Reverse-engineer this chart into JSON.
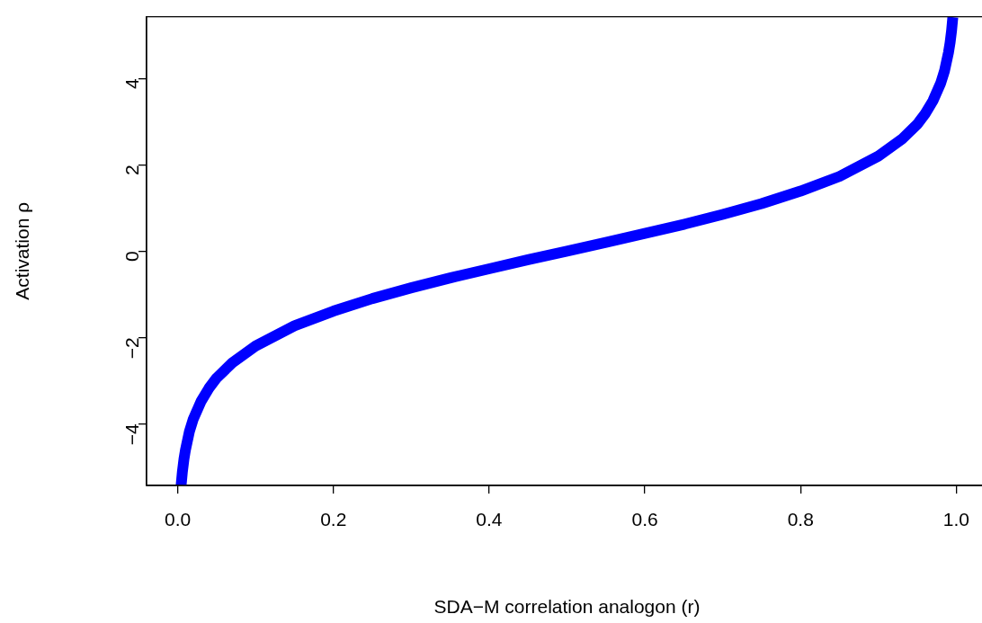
{
  "chart_data": {
    "type": "line",
    "xlabel": "SDA−M correlation analogon (r)",
    "ylabel": "Activation ρ",
    "x": [
      0.0044,
      0.006,
      0.008,
      0.01,
      0.015,
      0.02,
      0.03,
      0.04,
      0.05,
      0.07,
      0.1,
      0.15,
      0.2,
      0.25,
      0.3,
      0.35,
      0.4,
      0.45,
      0.5,
      0.55,
      0.6,
      0.65,
      0.7,
      0.75,
      0.8,
      0.85,
      0.9,
      0.93,
      0.95,
      0.96,
      0.97,
      0.98,
      0.985,
      0.99,
      0.992,
      0.994,
      0.9956
    ],
    "series": [
      {
        "color": "#0000ff",
        "values": [
          -5.42,
          -5.11,
          -4.82,
          -4.6,
          -4.18,
          -3.89,
          -3.48,
          -3.18,
          -2.94,
          -2.59,
          -2.2,
          -1.73,
          -1.39,
          -1.1,
          -0.85,
          -0.62,
          -0.41,
          -0.2,
          0,
          0.2,
          0.41,
          0.62,
          0.85,
          1.1,
          1.39,
          1.73,
          2.2,
          2.59,
          2.94,
          3.18,
          3.48,
          3.89,
          4.18,
          4.6,
          4.82,
          5.11,
          5.42
        ]
      }
    ],
    "xlim": [
      -0.04,
      1.04
    ],
    "ylim": [
      -5.43,
      5.43
    ],
    "xticks": [
      {
        "value": 0,
        "label": "0.0"
      },
      {
        "value": 0.2,
        "label": "0.2"
      },
      {
        "value": 0.4,
        "label": "0.4"
      },
      {
        "value": 0.6,
        "label": "0.6"
      },
      {
        "value": 0.8,
        "label": "0.8"
      },
      {
        "value": 1,
        "label": "1.0"
      }
    ],
    "yticks": [
      {
        "value": -4,
        "label": "−4"
      },
      {
        "value": -2,
        "label": "−2"
      },
      0,
      2,
      4
    ],
    "grid": false,
    "legend": false,
    "marker": "none",
    "line_style": "solid"
  }
}
